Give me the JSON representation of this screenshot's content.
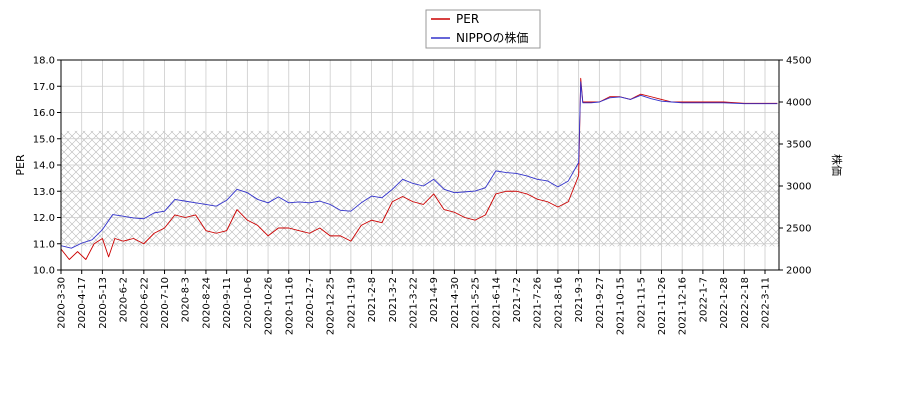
{
  "chart_data": {
    "type": "line",
    "legend": {
      "placement": "top-center"
    },
    "grid": true,
    "hatched_band": {
      "y_range": [
        10.9,
        15.3
      ],
      "axis": "left",
      "pattern": "crosshatch"
    },
    "x": {
      "ticks": [
        "2020-3-30",
        "2020-4-17",
        "2020-5-13",
        "2020-6-2",
        "2020-6-22",
        "2020-7-10",
        "2020-8-3",
        "2020-8-24",
        "2020-9-11",
        "2020-10-6",
        "2020-10-26",
        "2020-11-16",
        "2020-12-7",
        "2020-12-25",
        "2021-1-19",
        "2021-2-8",
        "2021-3-2",
        "2021-3-22",
        "2021-4-9",
        "2021-4-30",
        "2021-5-25",
        "2021-6-14",
        "2021-7-2",
        "2021-7-26",
        "2021-8-16",
        "2021-9-3",
        "2021-9-27",
        "2021-10-15",
        "2021-11-5",
        "2021-11-26",
        "2021-12-16",
        "2022-1-7",
        "2022-1-28",
        "2022-2-18",
        "2022-3-11"
      ]
    },
    "y_left": {
      "label": "PER",
      "range": [
        10.0,
        18.0
      ],
      "ticks": [
        "10.0",
        "11.0",
        "12.0",
        "13.0",
        "14.0",
        "15.0",
        "16.0",
        "17.0",
        "18.0"
      ]
    },
    "y_right": {
      "label": "株価",
      "range": [
        2000,
        4500
      ],
      "ticks": [
        "2000",
        "2500",
        "3000",
        "3500",
        "4000",
        "4500"
      ]
    },
    "series": [
      {
        "name": "PER",
        "axis": "left",
        "color": "#cc0000",
        "points": [
          [
            0,
            10.8
          ],
          [
            0.4,
            10.4
          ],
          [
            0.8,
            10.7
          ],
          [
            1.2,
            10.4
          ],
          [
            1.6,
            11.0
          ],
          [
            2.0,
            11.2
          ],
          [
            2.3,
            10.5
          ],
          [
            2.6,
            11.2
          ],
          [
            3.0,
            11.1
          ],
          [
            3.5,
            11.2
          ],
          [
            4.0,
            11.0
          ],
          [
            4.5,
            11.4
          ],
          [
            5.0,
            11.6
          ],
          [
            5.5,
            12.1
          ],
          [
            6.0,
            12.0
          ],
          [
            6.5,
            12.1
          ],
          [
            7.0,
            11.5
          ],
          [
            7.5,
            11.4
          ],
          [
            8.0,
            11.5
          ],
          [
            8.5,
            12.3
          ],
          [
            9.0,
            11.9
          ],
          [
            9.5,
            11.7
          ],
          [
            10.0,
            11.3
          ],
          [
            10.5,
            11.6
          ],
          [
            11.0,
            11.6
          ],
          [
            11.5,
            11.5
          ],
          [
            12.0,
            11.4
          ],
          [
            12.5,
            11.6
          ],
          [
            13.0,
            11.3
          ],
          [
            13.5,
            11.3
          ],
          [
            14.0,
            11.1
          ],
          [
            14.5,
            11.7
          ],
          [
            15.0,
            11.9
          ],
          [
            15.5,
            11.8
          ],
          [
            16.0,
            12.6
          ],
          [
            16.5,
            12.8
          ],
          [
            17.0,
            12.6
          ],
          [
            17.5,
            12.5
          ],
          [
            18.0,
            12.9
          ],
          [
            18.5,
            12.3
          ],
          [
            19.0,
            12.2
          ],
          [
            19.5,
            12.0
          ],
          [
            20.0,
            11.9
          ],
          [
            20.5,
            12.1
          ],
          [
            21.0,
            12.9
          ],
          [
            21.5,
            13.0
          ],
          [
            22.0,
            13.0
          ],
          [
            22.5,
            12.9
          ],
          [
            23.0,
            12.7
          ],
          [
            23.5,
            12.6
          ],
          [
            24.0,
            12.4
          ],
          [
            24.5,
            12.6
          ],
          [
            25.0,
            13.6
          ],
          [
            25.1,
            17.3
          ],
          [
            25.2,
            16.4
          ],
          [
            25.6,
            16.4
          ],
          [
            26.0,
            16.4
          ],
          [
            26.5,
            16.6
          ],
          [
            27.0,
            16.6
          ],
          [
            27.5,
            16.5
          ],
          [
            28.0,
            16.7
          ],
          [
            28.5,
            16.6
          ],
          [
            29.0,
            16.5
          ],
          [
            29.5,
            16.4
          ],
          [
            30.0,
            16.4
          ],
          [
            30.5,
            16.4
          ],
          [
            31.0,
            16.4
          ],
          [
            32.0,
            16.4
          ],
          [
            33.0,
            16.35
          ],
          [
            34.0,
            16.35
          ],
          [
            34.6,
            16.35
          ]
        ]
      },
      {
        "name": "NIPPOの株価",
        "axis": "right",
        "color": "#3333cc",
        "points": [
          [
            0,
            2290
          ],
          [
            0.5,
            2260
          ],
          [
            1.0,
            2320
          ],
          [
            1.5,
            2360
          ],
          [
            2.0,
            2480
          ],
          [
            2.5,
            2660
          ],
          [
            3.0,
            2640
          ],
          [
            3.5,
            2620
          ],
          [
            4.0,
            2610
          ],
          [
            4.5,
            2680
          ],
          [
            5.0,
            2700
          ],
          [
            5.5,
            2840
          ],
          [
            6.0,
            2820
          ],
          [
            6.5,
            2800
          ],
          [
            7.0,
            2780
          ],
          [
            7.5,
            2760
          ],
          [
            8.0,
            2830
          ],
          [
            8.5,
            2960
          ],
          [
            9.0,
            2920
          ],
          [
            9.5,
            2840
          ],
          [
            10.0,
            2800
          ],
          [
            10.5,
            2870
          ],
          [
            11.0,
            2800
          ],
          [
            11.5,
            2810
          ],
          [
            12.0,
            2800
          ],
          [
            12.5,
            2820
          ],
          [
            13.0,
            2780
          ],
          [
            13.5,
            2710
          ],
          [
            14.0,
            2700
          ],
          [
            14.5,
            2800
          ],
          [
            15.0,
            2880
          ],
          [
            15.5,
            2860
          ],
          [
            16.0,
            2960
          ],
          [
            16.5,
            3080
          ],
          [
            17.0,
            3030
          ],
          [
            17.5,
            3000
          ],
          [
            18.0,
            3080
          ],
          [
            18.5,
            2960
          ],
          [
            19.0,
            2920
          ],
          [
            19.5,
            2930
          ],
          [
            20.0,
            2940
          ],
          [
            20.5,
            2980
          ],
          [
            21.0,
            3180
          ],
          [
            21.5,
            3160
          ],
          [
            22.0,
            3150
          ],
          [
            22.5,
            3120
          ],
          [
            23.0,
            3080
          ],
          [
            23.5,
            3060
          ],
          [
            24.0,
            2990
          ],
          [
            24.5,
            3060
          ],
          [
            25.0,
            3280
          ],
          [
            25.1,
            4240
          ],
          [
            25.2,
            3990
          ],
          [
            25.6,
            3990
          ],
          [
            26.0,
            4000
          ],
          [
            26.5,
            4050
          ],
          [
            27.0,
            4060
          ],
          [
            27.5,
            4030
          ],
          [
            28.0,
            4080
          ],
          [
            28.5,
            4040
          ],
          [
            29.0,
            4010
          ],
          [
            29.5,
            4000
          ],
          [
            30.0,
            3990
          ],
          [
            30.5,
            3990
          ],
          [
            31.0,
            3990
          ],
          [
            32.0,
            3990
          ],
          [
            33.0,
            3980
          ],
          [
            34.0,
            3980
          ],
          [
            34.6,
            3980
          ]
        ]
      }
    ]
  }
}
